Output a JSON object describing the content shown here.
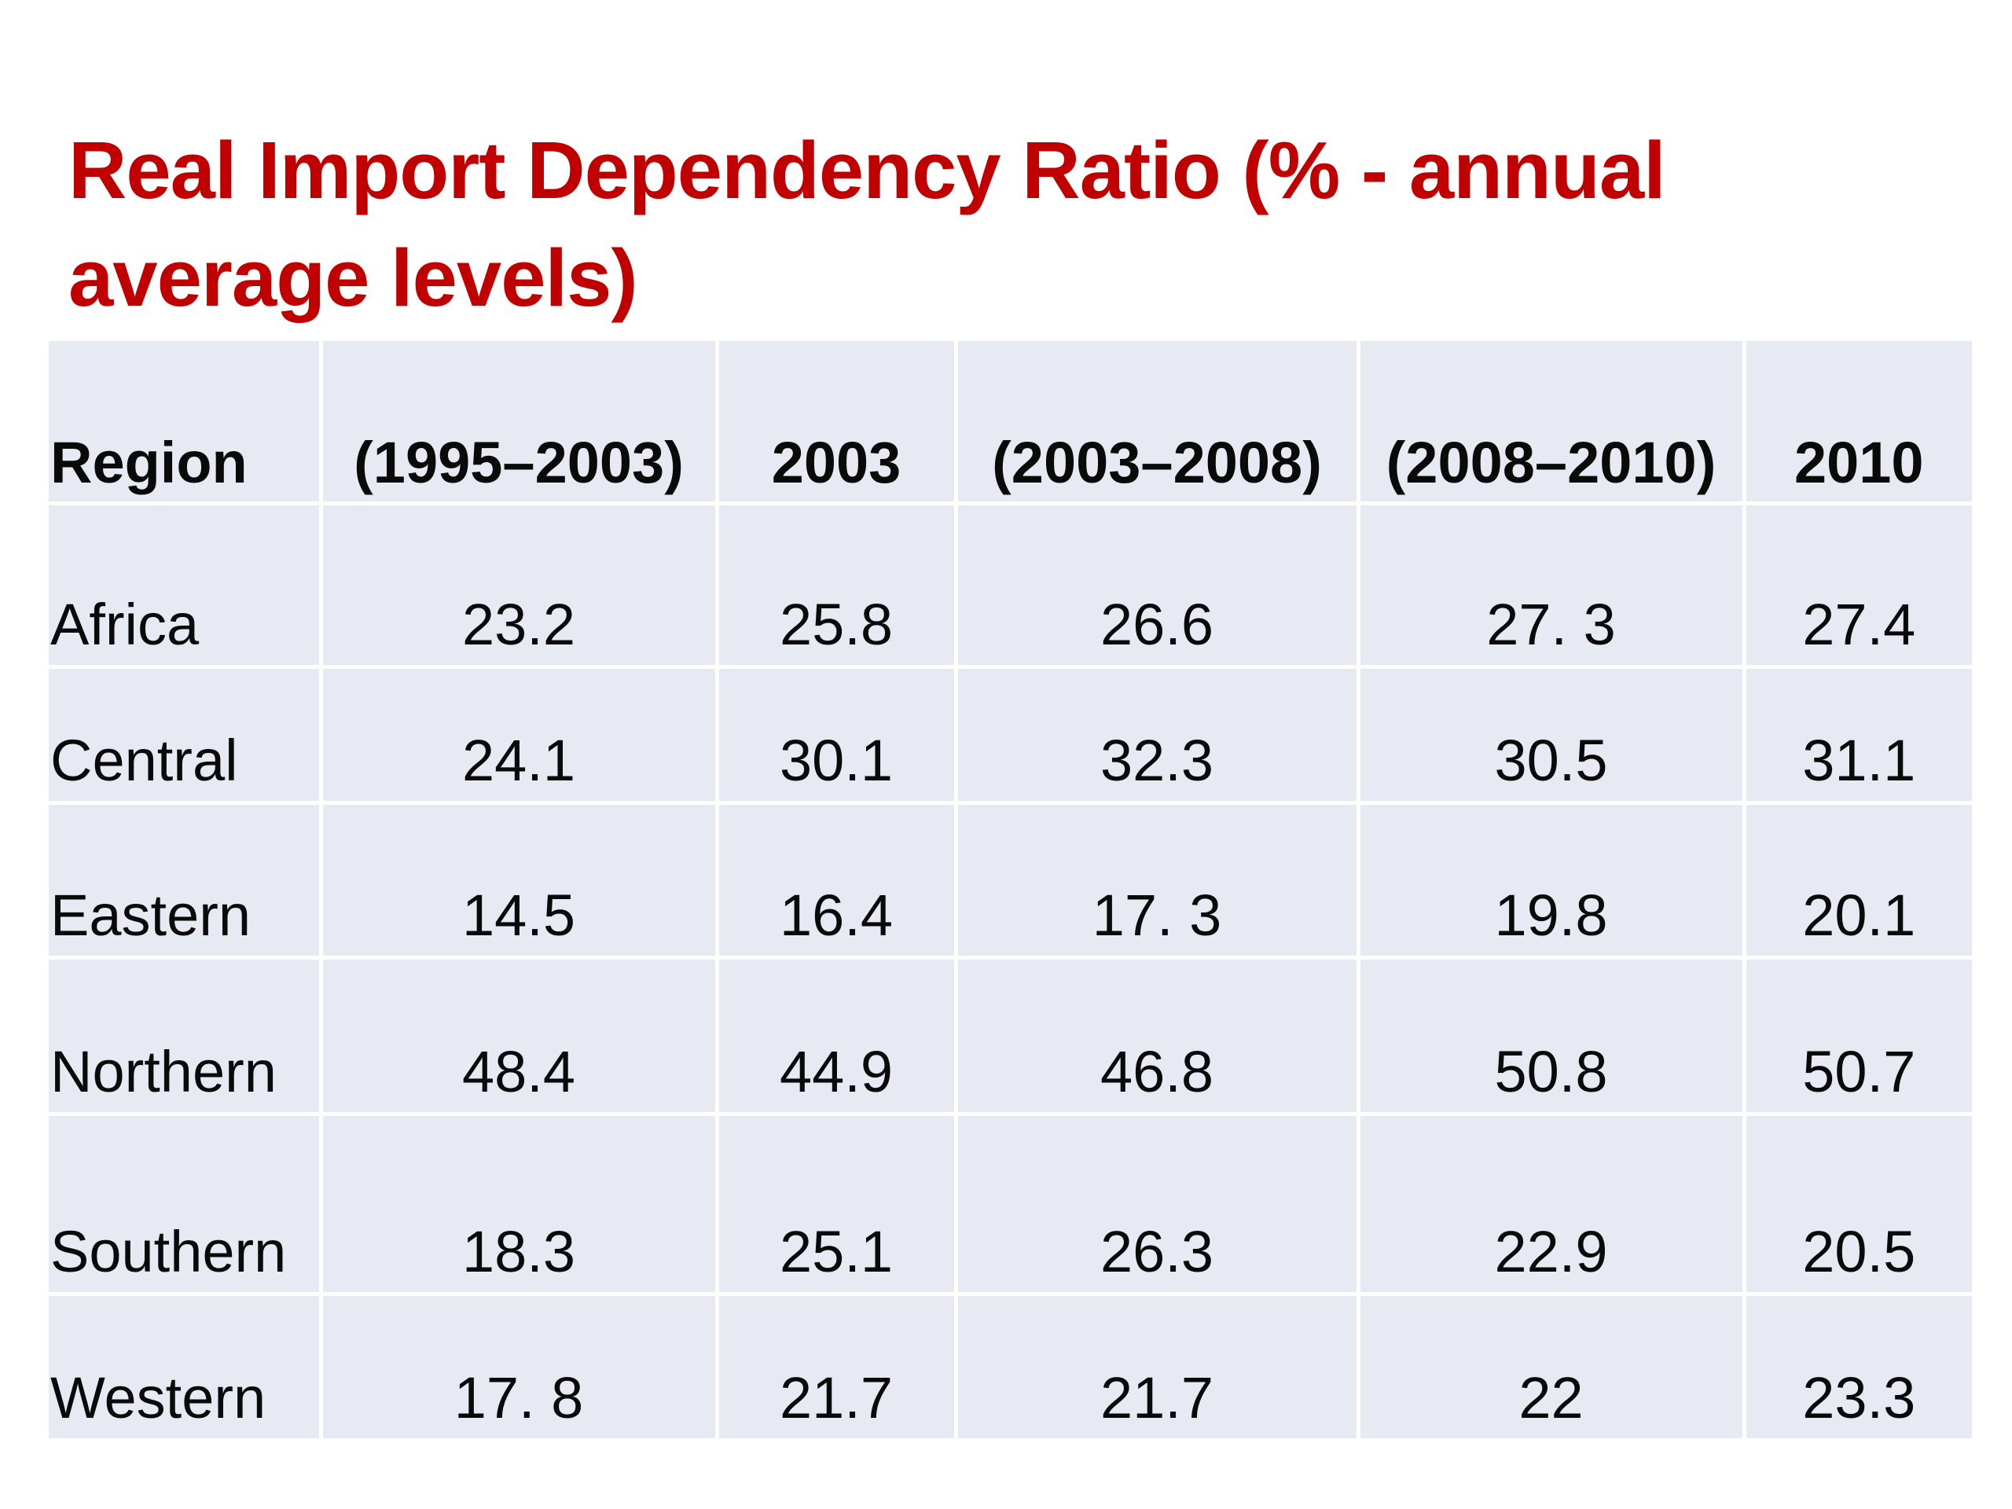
{
  "title": "Real Import Dependency Ratio  (% - annual average levels)",
  "table": {
    "headers": [
      "Region",
      "(1995–2003)",
      "2003",
      "(2003–2008)",
      "(2008–2010)",
      "2010"
    ],
    "rows": [
      [
        "Africa",
        "23.2",
        "25.8",
        "26.6",
        "27. 3",
        "27.4"
      ],
      [
        "Central",
        "24.1",
        "30.1",
        "32.3",
        "30.5",
        "31.1"
      ],
      [
        "Eastern",
        "14.5",
        "16.4",
        "17. 3",
        "19.8",
        "20.1"
      ],
      [
        "Northern",
        "48.4",
        "44.9",
        "46.8",
        "50.8",
        "50.7"
      ],
      [
        "Southern",
        "18.3",
        "25.1",
        "26.3",
        "22.9",
        "20.5"
      ],
      [
        "Western",
        "17. 8",
        "21.7",
        "21.7",
        "22",
        "23.3"
      ]
    ]
  },
  "colors": {
    "title": "#c00000",
    "cell_background": "#e8eaf3",
    "grid_lines": "#ffffff",
    "text": "#0a0a0a"
  }
}
